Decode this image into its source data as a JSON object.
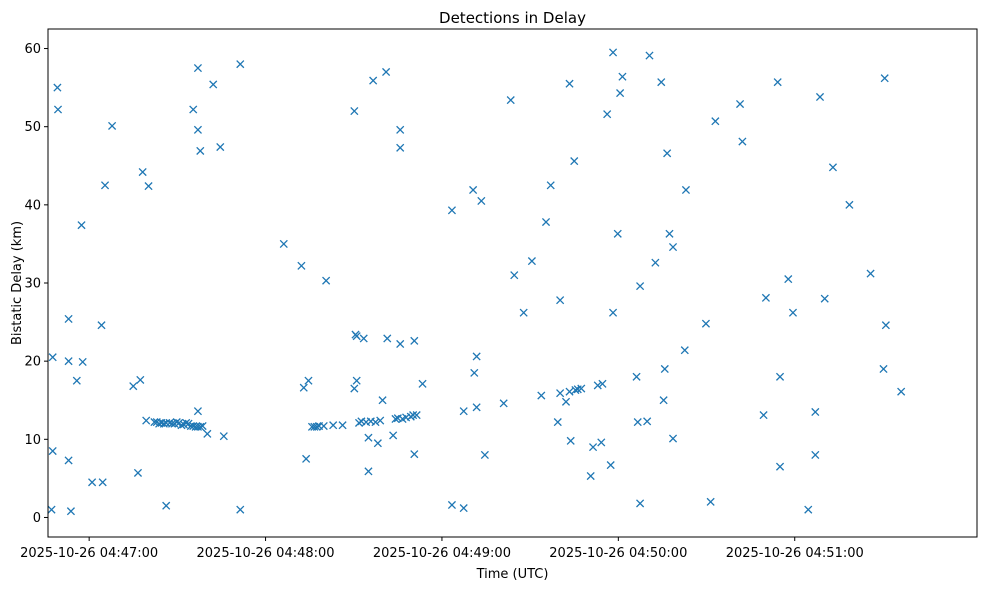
{
  "chart_data": {
    "type": "scatter",
    "title": "Detections in Delay",
    "xlabel": "Time (UTC)",
    "ylabel": "Bistatic Delay (km)",
    "x_unit": "seconds after 2025-10-26 04:47:00 UTC",
    "xlim": [
      -14,
      302
    ],
    "ylim": [
      -2.5,
      62.5
    ],
    "x_ticks": [
      {
        "value": 0,
        "label": "2025-10-26 04:47:00"
      },
      {
        "value": 60,
        "label": "2025-10-26 04:48:00"
      },
      {
        "value": 120,
        "label": "2025-10-26 04:49:00"
      },
      {
        "value": 180,
        "label": "2025-10-26 04:50:00"
      },
      {
        "value": 240,
        "label": "2025-10-26 04:51:00"
      }
    ],
    "y_ticks": [
      0,
      10,
      20,
      30,
      40,
      50,
      60
    ],
    "marker": "x",
    "color": "#1f77b4",
    "grid": false,
    "series": [
      {
        "name": "detections",
        "points": [
          [
            -12.8,
            1.0
          ],
          [
            -12.4,
            20.5
          ],
          [
            -12.4,
            8.5
          ],
          [
            -10.8,
            55.0
          ],
          [
            -10.6,
            52.2
          ],
          [
            -7.0,
            25.4
          ],
          [
            -7.0,
            20.0
          ],
          [
            -7.0,
            7.3
          ],
          [
            -6.2,
            0.8
          ],
          [
            -4.2,
            17.5
          ],
          [
            -2.6,
            37.4
          ],
          [
            -2.2,
            19.9
          ],
          [
            1.0,
            4.5
          ],
          [
            4.2,
            24.6
          ],
          [
            4.6,
            4.5
          ],
          [
            5.4,
            42.5
          ],
          [
            7.8,
            50.1
          ],
          [
            15.0,
            16.8
          ],
          [
            16.6,
            5.7
          ],
          [
            17.4,
            17.6
          ],
          [
            18.2,
            44.2
          ],
          [
            19.4,
            12.4
          ],
          [
            20.2,
            42.4
          ],
          [
            22.2,
            12.2
          ],
          [
            23.0,
            12.2
          ],
          [
            23.8,
            12.0
          ],
          [
            24.6,
            12.1
          ],
          [
            25.4,
            12.0
          ],
          [
            26.2,
            1.5
          ],
          [
            26.2,
            12.1
          ],
          [
            27.4,
            12.1
          ],
          [
            28.2,
            12.0
          ],
          [
            29.0,
            12.0
          ],
          [
            29.8,
            12.2
          ],
          [
            30.6,
            12.1
          ],
          [
            31.4,
            11.8
          ],
          [
            32.2,
            11.9
          ],
          [
            33.0,
            12.1
          ],
          [
            33.8,
            12.0
          ],
          [
            34.6,
            11.7
          ],
          [
            35.4,
            11.7
          ],
          [
            36.2,
            11.6
          ],
          [
            37.0,
            11.6
          ],
          [
            37.8,
            11.6
          ],
          [
            38.6,
            11.7
          ],
          [
            35.4,
            52.2
          ],
          [
            37.0,
            57.5
          ],
          [
            37.0,
            49.6
          ],
          [
            37.0,
            13.6
          ],
          [
            37.8,
            46.9
          ],
          [
            40.2,
            10.7
          ],
          [
            42.2,
            55.4
          ],
          [
            44.6,
            47.4
          ],
          [
            45.8,
            10.4
          ],
          [
            51.4,
            1.0
          ],
          [
            51.4,
            58.0
          ],
          [
            66.2,
            35.0
          ],
          [
            72.2,
            32.2
          ],
          [
            73.0,
            16.6
          ],
          [
            73.8,
            7.5
          ],
          [
            74.6,
            17.5
          ],
          [
            75.8,
            11.6
          ],
          [
            76.6,
            11.6
          ],
          [
            77.4,
            11.6
          ],
          [
            78.2,
            11.7
          ],
          [
            79.8,
            11.7
          ],
          [
            80.6,
            30.3
          ],
          [
            83.0,
            11.8
          ],
          [
            86.2,
            11.8
          ],
          [
            90.2,
            52.0
          ],
          [
            90.2,
            16.5
          ],
          [
            90.6,
            23.4
          ],
          [
            91.0,
            17.5
          ],
          [
            91.0,
            23.2
          ],
          [
            91.8,
            12.1
          ],
          [
            92.6,
            12.3
          ],
          [
            93.4,
            22.9
          ],
          [
            94.2,
            12.2
          ],
          [
            95.0,
            10.2
          ],
          [
            95.0,
            5.9
          ],
          [
            95.8,
            12.3
          ],
          [
            96.6,
            55.9
          ],
          [
            97.4,
            12.2
          ],
          [
            98.2,
            9.5
          ],
          [
            99.0,
            12.4
          ],
          [
            99.8,
            15.0
          ],
          [
            101.0,
            57.0
          ],
          [
            101.4,
            22.9
          ],
          [
            103.4,
            10.5
          ],
          [
            104.2,
            12.6
          ],
          [
            105.0,
            12.7
          ],
          [
            105.8,
            49.6
          ],
          [
            105.8,
            47.3
          ],
          [
            105.8,
            22.2
          ],
          [
            106.6,
            12.6
          ],
          [
            107.8,
            12.8
          ],
          [
            109.4,
            12.9
          ],
          [
            110.2,
            13.1
          ],
          [
            110.6,
            22.6
          ],
          [
            110.6,
            8.1
          ],
          [
            111.4,
            13.1
          ],
          [
            113.4,
            17.1
          ],
          [
            123.4,
            39.3
          ],
          [
            123.4,
            1.6
          ],
          [
            127.4,
            13.6
          ],
          [
            127.4,
            1.2
          ],
          [
            130.6,
            41.9
          ],
          [
            131.0,
            18.5
          ],
          [
            131.8,
            20.6
          ],
          [
            131.8,
            14.1
          ],
          [
            133.4,
            40.5
          ],
          [
            134.6,
            8.0
          ],
          [
            141.0,
            14.6
          ],
          [
            143.4,
            53.4
          ],
          [
            144.6,
            31.0
          ],
          [
            147.8,
            26.2
          ],
          [
            150.6,
            32.8
          ],
          [
            153.8,
            15.6
          ],
          [
            155.4,
            37.8
          ],
          [
            157.0,
            42.5
          ],
          [
            159.4,
            12.2
          ],
          [
            160.2,
            15.9
          ],
          [
            160.2,
            27.8
          ],
          [
            162.2,
            14.8
          ],
          [
            163.4,
            55.5
          ],
          [
            163.4,
            16.1
          ],
          [
            163.8,
            9.8
          ],
          [
            165.0,
            45.6
          ],
          [
            165.4,
            16.3
          ],
          [
            166.2,
            16.4
          ],
          [
            167.4,
            16.5
          ],
          [
            170.6,
            5.3
          ],
          [
            171.4,
            9.0
          ],
          [
            173.0,
            16.9
          ],
          [
            174.2,
            9.6
          ],
          [
            174.6,
            17.1
          ],
          [
            176.2,
            51.6
          ],
          [
            177.4,
            6.7
          ],
          [
            178.2,
            59.5
          ],
          [
            178.2,
            26.2
          ],
          [
            179.8,
            36.3
          ],
          [
            180.6,
            54.3
          ],
          [
            181.4,
            56.4
          ],
          [
            186.2,
            18.0
          ],
          [
            186.6,
            12.2
          ],
          [
            187.4,
            1.8
          ],
          [
            187.4,
            29.6
          ],
          [
            189.8,
            12.3
          ],
          [
            190.6,
            59.1
          ],
          [
            192.6,
            32.6
          ],
          [
            194.6,
            55.7
          ],
          [
            195.4,
            15.0
          ],
          [
            195.8,
            19.0
          ],
          [
            196.6,
            46.6
          ],
          [
            197.4,
            36.3
          ],
          [
            198.6,
            34.6
          ],
          [
            198.6,
            10.1
          ],
          [
            202.6,
            21.4
          ],
          [
            203.0,
            41.9
          ],
          [
            209.8,
            24.8
          ],
          [
            211.4,
            2.0
          ],
          [
            213.0,
            50.7
          ],
          [
            221.4,
            52.9
          ],
          [
            222.2,
            48.1
          ],
          [
            229.4,
            13.1
          ],
          [
            230.2,
            28.1
          ],
          [
            234.2,
            55.7
          ],
          [
            235.0,
            6.5
          ],
          [
            235.0,
            18.0
          ],
          [
            237.8,
            30.5
          ],
          [
            239.4,
            26.2
          ],
          [
            244.6,
            1.0
          ],
          [
            247.0,
            13.5
          ],
          [
            247.0,
            8.0
          ],
          [
            248.6,
            53.8
          ],
          [
            250.2,
            28.0
          ],
          [
            253.0,
            44.8
          ],
          [
            258.6,
            40.0
          ],
          [
            265.8,
            31.2
          ],
          [
            270.2,
            19.0
          ],
          [
            270.6,
            56.2
          ],
          [
            271.0,
            24.6
          ],
          [
            276.2,
            16.1
          ]
        ]
      }
    ]
  }
}
